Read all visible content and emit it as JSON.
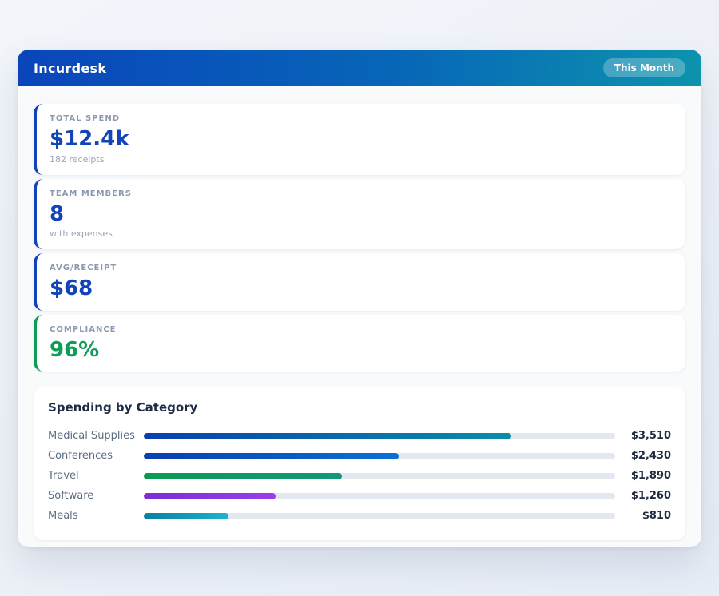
{
  "header": {
    "title": "Incurdesk",
    "badge": "This Month",
    "gradient_from": "#0a45bb",
    "gradient_to": "#0d93ad"
  },
  "stats": [
    {
      "label": "TOTAL SPEND",
      "value": "$12.4k",
      "subtext": "182 receipts",
      "accent": "#1243b8",
      "value_color": "#1243b8"
    },
    {
      "label": "TEAM MEMBERS",
      "value": "8",
      "subtext": "with expenses",
      "accent": "#1243b8",
      "value_color": "#1243b8"
    },
    {
      "label": "AVG/RECEIPT",
      "value": "$68",
      "subtext": "",
      "accent": "#1243b8",
      "value_color": "#1243b8"
    },
    {
      "label": "COMPLIANCE",
      "value": "96%",
      "subtext": "",
      "accent": "#0f9c57",
      "value_color": "#0f9c57"
    }
  ],
  "chart_data": {
    "type": "bar",
    "orientation": "horizontal",
    "title": "Spending by Category",
    "categories": [
      "Medical Supplies",
      "Conferences",
      "Travel",
      "Software",
      "Meals"
    ],
    "values": [
      3510,
      2430,
      1890,
      1260,
      810
    ],
    "value_labels": [
      "$3,510",
      "$2,430",
      "$1,890",
      "$1,260",
      "$810"
    ],
    "axis_max": 4500,
    "track_color": "#e2e8f0",
    "bar_colors": [
      [
        "#0a3fae",
        "#0a8fa6"
      ],
      [
        "#0a3fae",
        "#0b70d6"
      ],
      [
        "#0a9b52",
        "#12997a"
      ],
      [
        "#7a2ed6",
        "#9a3fe6"
      ],
      [
        "#0b7f9b",
        "#19b5cf"
      ]
    ]
  }
}
